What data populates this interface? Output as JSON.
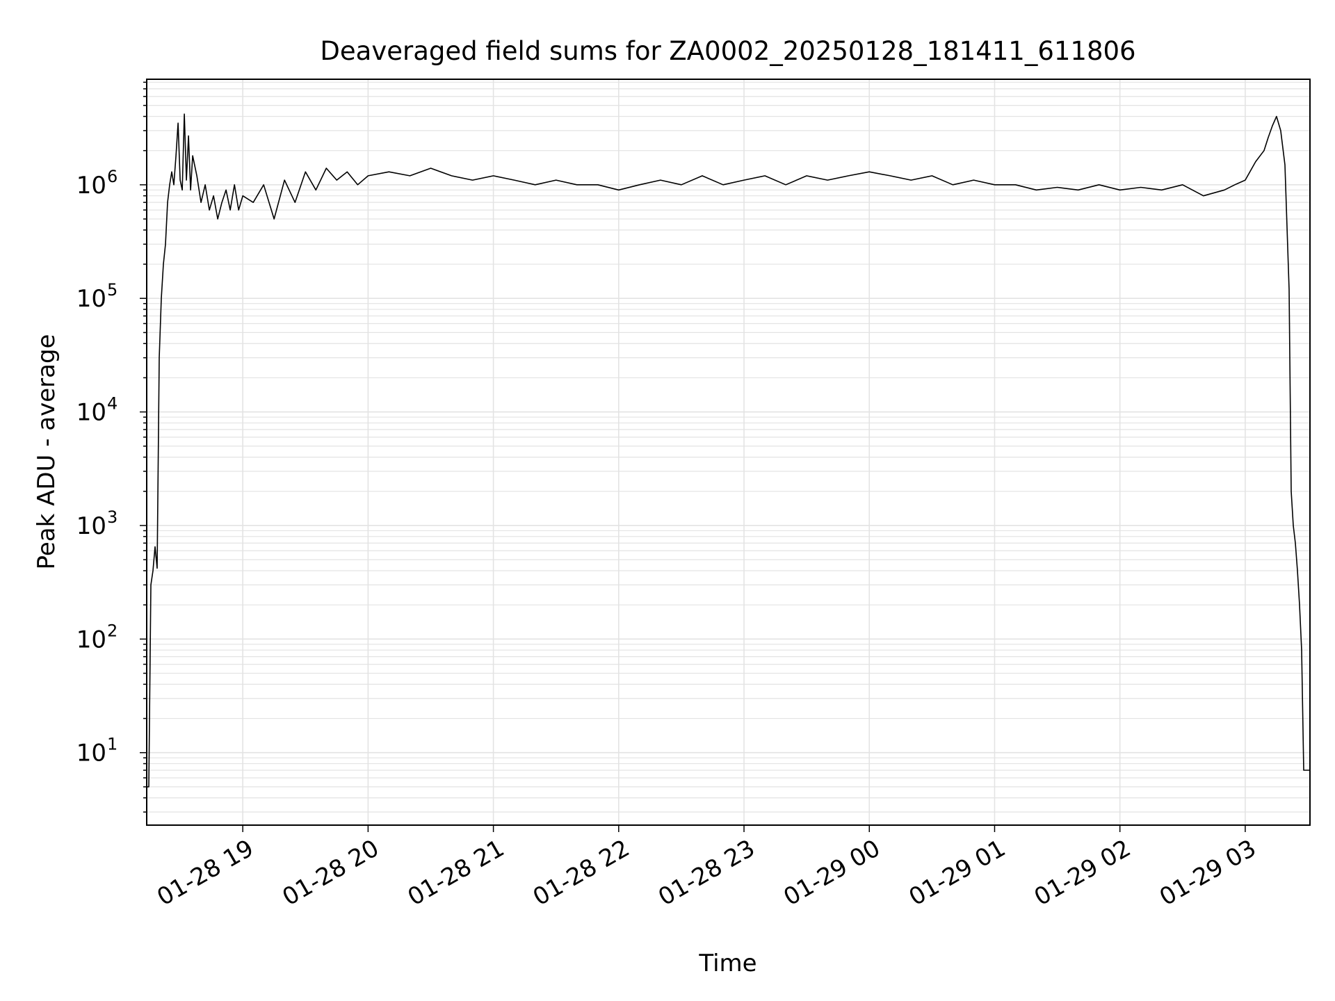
{
  "chart_data": {
    "type": "line",
    "title": "Deaveraged field sums for ZA0002_20250128_181411_611806",
    "xlabel": "Time",
    "ylabel": "Peak ADU - average",
    "yscale": "log",
    "ylim": [
      2.3,
      8500000
    ],
    "xlim": [
      "2025-01-28 18:14",
      "2025-01-29 03:31"
    ],
    "grid": true,
    "line_color": "#000000",
    "grid_color": "#e3e3e3",
    "x_ticks": [
      {
        "value": "2025-01-28 19:00",
        "label": "01-28 19"
      },
      {
        "value": "2025-01-28 20:00",
        "label": "01-28 20"
      },
      {
        "value": "2025-01-28 21:00",
        "label": "01-28 21"
      },
      {
        "value": "2025-01-28 22:00",
        "label": "01-28 22"
      },
      {
        "value": "2025-01-28 23:00",
        "label": "01-28 23"
      },
      {
        "value": "2025-01-29 00:00",
        "label": "01-29 00"
      },
      {
        "value": "2025-01-29 01:00",
        "label": "01-29 01"
      },
      {
        "value": "2025-01-29 02:00",
        "label": "01-29 02"
      },
      {
        "value": "2025-01-29 03:00",
        "label": "01-29 03"
      }
    ],
    "y_ticks": [
      {
        "value": 10,
        "base": "10",
        "exp": "1"
      },
      {
        "value": 100,
        "base": "10",
        "exp": "2"
      },
      {
        "value": 1000,
        "base": "10",
        "exp": "3"
      },
      {
        "value": 10000,
        "base": "10",
        "exp": "4"
      },
      {
        "value": 100000,
        "base": "10",
        "exp": "5"
      },
      {
        "value": 1000000,
        "base": "10",
        "exp": "6"
      }
    ],
    "series": [
      {
        "x": [
          "2025-01-28 18:14",
          "2025-01-28 18:15",
          "2025-01-28 18:16",
          "2025-01-28 18:17",
          "2025-01-28 18:18",
          "2025-01-28 18:19",
          "2025-01-28 18:20",
          "2025-01-28 18:21",
          "2025-01-28 18:22",
          "2025-01-28 18:23",
          "2025-01-28 18:24",
          "2025-01-28 18:25",
          "2025-01-28 18:26",
          "2025-01-28 18:27",
          "2025-01-28 18:28",
          "2025-01-28 18:29",
          "2025-01-28 18:30",
          "2025-01-28 18:31",
          "2025-01-28 18:32",
          "2025-01-28 18:33",
          "2025-01-28 18:34",
          "2025-01-28 18:35",
          "2025-01-28 18:36",
          "2025-01-28 18:38",
          "2025-01-28 18:40",
          "2025-01-28 18:42",
          "2025-01-28 18:44",
          "2025-01-28 18:46",
          "2025-01-28 18:48",
          "2025-01-28 18:50",
          "2025-01-28 18:52",
          "2025-01-28 18:54",
          "2025-01-28 18:56",
          "2025-01-28 18:58",
          "2025-01-28 19:00",
          "2025-01-28 19:05",
          "2025-01-28 19:10",
          "2025-01-28 19:15",
          "2025-01-28 19:20",
          "2025-01-28 19:25",
          "2025-01-28 19:30",
          "2025-01-28 19:35",
          "2025-01-28 19:40",
          "2025-01-28 19:45",
          "2025-01-28 19:50",
          "2025-01-28 19:55",
          "2025-01-28 20:00",
          "2025-01-28 20:10",
          "2025-01-28 20:20",
          "2025-01-28 20:30",
          "2025-01-28 20:40",
          "2025-01-28 20:50",
          "2025-01-28 21:00",
          "2025-01-28 21:10",
          "2025-01-28 21:20",
          "2025-01-28 21:30",
          "2025-01-28 21:40",
          "2025-01-28 21:50",
          "2025-01-28 22:00",
          "2025-01-28 22:10",
          "2025-01-28 22:20",
          "2025-01-28 22:30",
          "2025-01-28 22:40",
          "2025-01-28 22:50",
          "2025-01-28 23:00",
          "2025-01-28 23:10",
          "2025-01-28 23:20",
          "2025-01-28 23:30",
          "2025-01-28 23:40",
          "2025-01-28 23:50",
          "2025-01-29 00:00",
          "2025-01-29 00:10",
          "2025-01-29 00:20",
          "2025-01-29 00:30",
          "2025-01-29 00:40",
          "2025-01-29 00:50",
          "2025-01-29 01:00",
          "2025-01-29 01:10",
          "2025-01-29 01:20",
          "2025-01-29 01:30",
          "2025-01-29 01:40",
          "2025-01-29 01:50",
          "2025-01-29 02:00",
          "2025-01-29 02:10",
          "2025-01-29 02:20",
          "2025-01-29 02:30",
          "2025-01-29 02:40",
          "2025-01-29 02:50",
          "2025-01-29 02:55",
          "2025-01-29 03:00",
          "2025-01-29 03:05",
          "2025-01-29 03:09",
          "2025-01-29 03:11",
          "2025-01-29 03:13",
          "2025-01-29 03:15",
          "2025-01-29 03:17",
          "2025-01-29 03:19",
          "2025-01-29 03:21",
          "2025-01-29 03:22",
          "2025-01-29 03:23",
          "2025-01-29 03:24",
          "2025-01-29 03:25",
          "2025-01-29 03:26",
          "2025-01-29 03:27",
          "2025-01-29 03:28",
          "2025-01-29 03:29",
          "2025-01-29 03:30",
          "2025-01-29 03:31"
        ],
        "y": [
          5,
          5,
          300,
          400,
          650,
          420,
          30000,
          100000,
          200000,
          300000,
          700000,
          1000000,
          1300000,
          1000000,
          1800000,
          3500000,
          1100000,
          900000,
          4200000,
          1100000,
          2700000,
          900000,
          1800000,
          1200000,
          700000,
          1000000,
          600000,
          800000,
          500000,
          700000,
          900000,
          600000,
          1000000,
          600000,
          800000,
          700000,
          1000000,
          500000,
          1100000,
          700000,
          1300000,
          900000,
          1400000,
          1100000,
          1300000,
          1000000,
          1200000,
          1300000,
          1200000,
          1400000,
          1200000,
          1100000,
          1200000,
          1100000,
          1000000,
          1100000,
          1000000,
          1000000,
          900000,
          1000000,
          1100000,
          1000000,
          1200000,
          1000000,
          1100000,
          1200000,
          1000000,
          1200000,
          1100000,
          1200000,
          1300000,
          1200000,
          1100000,
          1200000,
          1000000,
          1100000,
          1000000,
          1000000,
          900000,
          950000,
          900000,
          1000000,
          900000,
          950000,
          900000,
          1000000,
          800000,
          900000,
          1000000,
          1100000,
          1600000,
          2000000,
          2600000,
          3300000,
          4000000,
          3000000,
          1500000,
          120000,
          2000,
          1000,
          700,
          400,
          200,
          80,
          7,
          7,
          7,
          7
        ]
      }
    ]
  }
}
